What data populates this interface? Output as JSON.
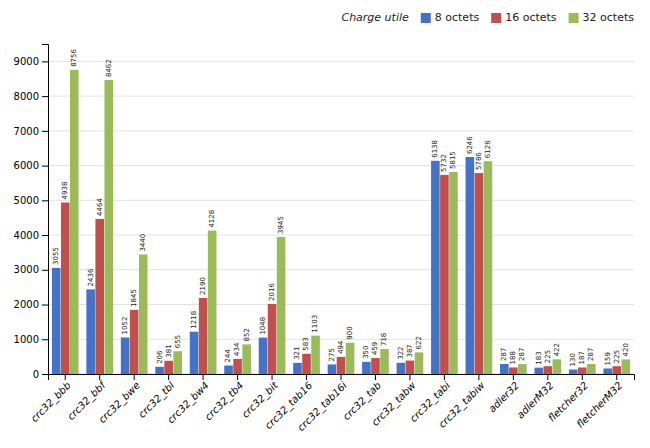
{
  "chart_data": {
    "type": "bar",
    "categories": [
      "crc32_bbb",
      "crc32_bbf",
      "crc32_bwe",
      "crc32_tbl",
      "crc32_bw4",
      "crc32_tb4",
      "crc32_bit",
      "crc32_tab16",
      "crc32_tab16i",
      "crc32_tab",
      "crc32_tabw",
      "crc32_tabi",
      "crc32_tabiw",
      "adler32",
      "adlerM32",
      "fletcher32",
      "fletcherM32"
    ],
    "series": [
      {
        "name": "8 octets",
        "color": "#4472c4",
        "values": [
          3055,
          2436,
          1052,
          206,
          1218,
          244,
          1048,
          321,
          275,
          350,
          322,
          6138,
          6246,
          287,
          183,
          130,
          159
        ]
      },
      {
        "name": "16 octets",
        "color": "#c0504d",
        "values": [
          4938,
          4464,
          1845,
          381,
          2190,
          434,
          2016,
          583,
          494,
          459,
          387,
          5732,
          5786,
          188,
          225,
          187,
          225
        ]
      },
      {
        "name": "32 octets",
        "color": "#9bbb59",
        "values": [
          8756,
          8462,
          3440,
          655,
          4128,
          852,
          3945,
          1103,
          900,
          718,
          622,
          5815,
          6126,
          287,
          422,
          287,
          420
        ]
      }
    ],
    "legend_title": "Charge utile",
    "ylim": [
      0,
      9500
    ],
    "yticks": [
      0,
      1000,
      2000,
      3000,
      4000,
      5000,
      6000,
      7000,
      8000,
      9000
    ],
    "grid": true,
    "legend": "upper right",
    "data_labels": true
  }
}
